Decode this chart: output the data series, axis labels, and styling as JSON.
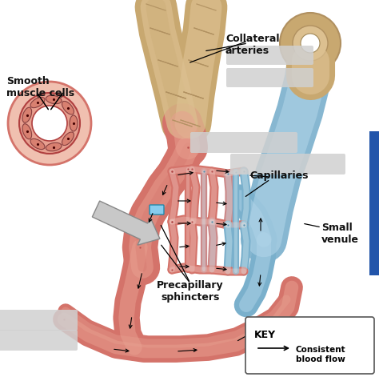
{
  "background_color": "#ffffff",
  "artery_color": "#d4736a",
  "artery_mid": "#c86060",
  "artery_light": "#e8a090",
  "artery_dark": "#b04040",
  "vein_color": "#7ab0cc",
  "vein_light": "#b0d4e8",
  "vein_dark": "#4488aa",
  "beige_dark": "#b09060",
  "beige_mid": "#c8a870",
  "beige_light": "#dcc090",
  "capnet_fill": "#e8a8a0",
  "capnet_wall": "#c07060",
  "capnet_inner": "#f0c8c0",
  "text_color": "#111111",
  "labels": {
    "smooth_muscle": "Smooth\nmuscle cells",
    "collateral": "Collateral\narteries",
    "capillaries": "Capillaries",
    "small_venule": "Small\nvenule",
    "precapillary": "Precapillary\nsphincters",
    "key_title": "KEY",
    "key_arrow": "Consistent\nblood flow"
  }
}
